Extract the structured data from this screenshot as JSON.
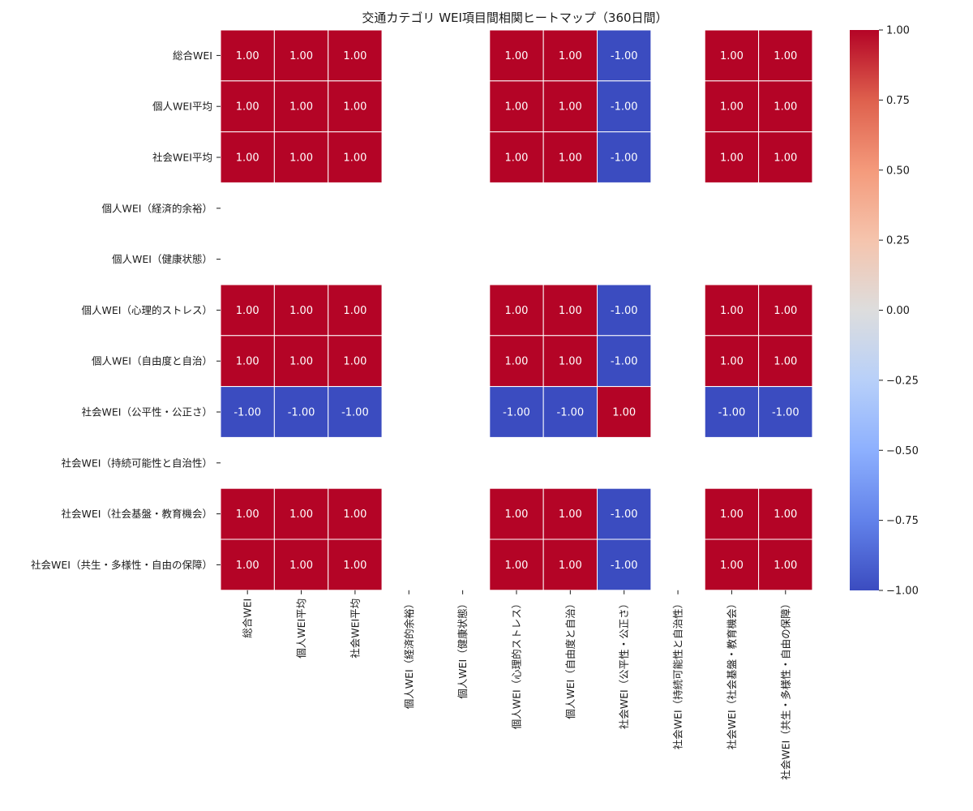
{
  "chart_data": {
    "type": "heatmap",
    "title": "交通カテゴリ WEI項目間相関ヒートマップ（360日間）",
    "rows": [
      "総合WEI",
      "個人WEI平均",
      "社会WEI平均",
      "個人WEI（経済的余裕）",
      "個人WEI（健康状態）",
      "個人WEI（心理的ストレス）",
      "個人WEI（自由度と自治）",
      "社会WEI（公平性・公正さ）",
      "社会WEI（持続可能性と自治性）",
      "社会WEI（社会基盤・教育機会）",
      "社会WEI（共生・多様性・自由の保障）"
    ],
    "columns": [
      "総合WEI",
      "個人WEI平均",
      "社会WEI平均",
      "個人WEI（経済的余裕）",
      "個人WEI（健康状態）",
      "個人WEI（心理的ストレス）",
      "個人WEI（自由度と自治）",
      "社会WEI（公平性・公正さ）",
      "社会WEI（持続可能性と自治性）",
      "社会WEI（社会基盤・教育機会）",
      "社会WEI（共生・多様性・自由の保障）"
    ],
    "values": [
      [
        1,
        1,
        1,
        null,
        null,
        1,
        1,
        -1,
        null,
        1,
        1
      ],
      [
        1,
        1,
        1,
        null,
        null,
        1,
        1,
        -1,
        null,
        1,
        1
      ],
      [
        1,
        1,
        1,
        null,
        null,
        1,
        1,
        -1,
        null,
        1,
        1
      ],
      [
        null,
        null,
        null,
        null,
        null,
        null,
        null,
        null,
        null,
        null,
        null
      ],
      [
        null,
        null,
        null,
        null,
        null,
        null,
        null,
        null,
        null,
        null,
        null
      ],
      [
        1,
        1,
        1,
        null,
        null,
        1,
        1,
        -1,
        null,
        1,
        1
      ],
      [
        1,
        1,
        1,
        null,
        null,
        1,
        1,
        -1,
        null,
        1,
        1
      ],
      [
        -1,
        -1,
        -1,
        null,
        null,
        -1,
        -1,
        1,
        null,
        -1,
        -1
      ],
      [
        null,
        null,
        null,
        null,
        null,
        null,
        null,
        null,
        null,
        null,
        null
      ],
      [
        1,
        1,
        1,
        null,
        null,
        1,
        1,
        -1,
        null,
        1,
        1
      ],
      [
        1,
        1,
        1,
        null,
        null,
        1,
        1,
        -1,
        null,
        1,
        1
      ]
    ],
    "value_format": "0.00",
    "colorscale": "coolwarm",
    "vmin": -1.0,
    "vmax": 1.0,
    "colorbar_ticks": [
      "1.00",
      "0.75",
      "0.50",
      "0.25",
      "0.00",
      "−0.25",
      "−0.50",
      "−0.75",
      "−1.00"
    ],
    "colors": {
      "high": "#b40426",
      "low": "#3b4cc0",
      "mid": "#dddddd"
    }
  }
}
